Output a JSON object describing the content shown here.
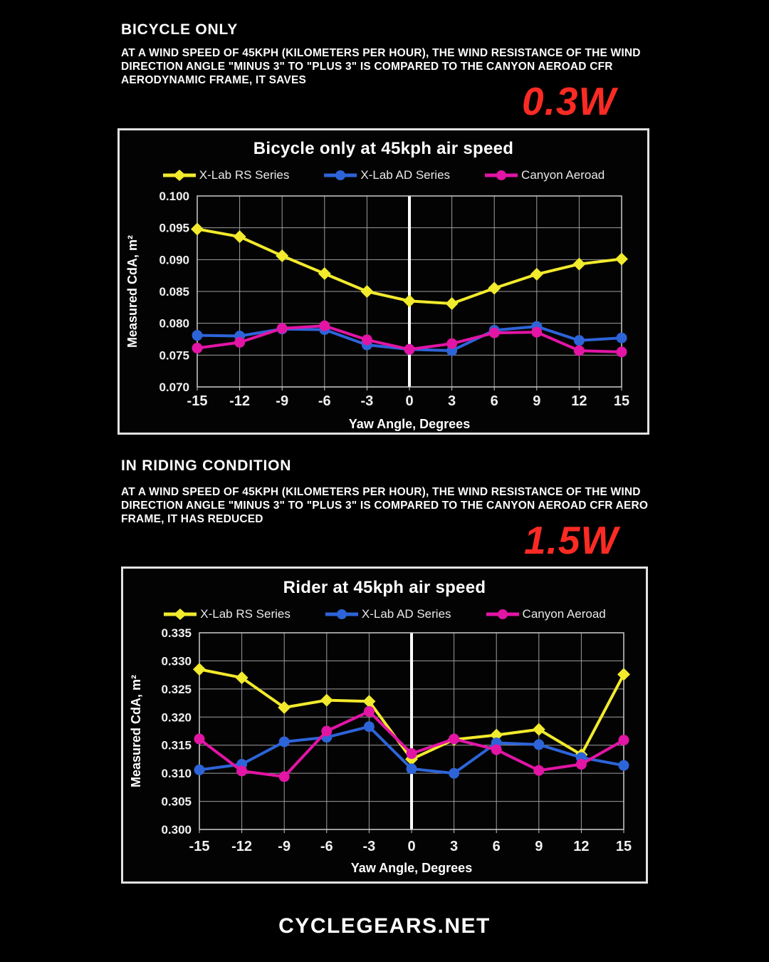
{
  "page": {
    "background": "#000000",
    "accent_red": "#fb2b24"
  },
  "section1": {
    "heading": "BICYCLE ONLY",
    "body": "AT A WIND SPEED OF 45KPH (KILOMETERS PER HOUR), THE WIND RESISTANCE OF THE WIND DIRECTION ANGLE \"MINUS 3\" TO \"PLUS 3\" IS COMPARED TO THE CANYON AEROAD CFR AERODYNAMIC FRAME, IT SAVES",
    "highlight": "0.3W"
  },
  "section2": {
    "heading": "IN RIDING CONDITION",
    "body": "AT A WIND SPEED OF 45KPH (KILOMETERS PER HOUR), THE WIND RESISTANCE OF THE WIND DIRECTION ANGLE \"MINUS 3\" TO \"PLUS 3\" IS COMPARED TO THE CANYON AEROAD CFR AERO FRAME, IT HAS REDUCED",
    "highlight": "1.5W"
  },
  "footer": {
    "text": "CYCLEGEARS.NET"
  },
  "chart_data": [
    {
      "type": "line",
      "title": "Bicycle only at 45kph air speed",
      "xlabel": "Yaw Angle, Degrees",
      "ylabel": "Measured CdA, m²",
      "x": [
        -15,
        -12,
        -9,
        -6,
        -3,
        0,
        3,
        6,
        9,
        12,
        15
      ],
      "ylim": [
        0.07,
        0.1
      ],
      "ytick_step": 0.005,
      "ytick_decimals": 3,
      "grid": true,
      "legend_position": "top",
      "zero_line_color": "#ffffff",
      "series": [
        {
          "name": "X-Lab RS Series",
          "color": "#f2ea2d",
          "marker": "diamond",
          "values": [
            0.0948,
            0.0936,
            0.0906,
            0.0878,
            0.085,
            0.0835,
            0.0831,
            0.0855,
            0.0877,
            0.0893,
            0.0901
          ]
        },
        {
          "name": "X-Lab AD Series",
          "color": "#2d64d8",
          "marker": "circle",
          "values": [
            0.0781,
            0.078,
            0.0791,
            0.079,
            0.0766,
            0.0759,
            0.0757,
            0.0789,
            0.0795,
            0.0773,
            0.0777
          ]
        },
        {
          "name": "Canyon Aeroad",
          "color": "#e215a5",
          "marker": "circle",
          "values": [
            0.0761,
            0.077,
            0.0792,
            0.0796,
            0.0774,
            0.0759,
            0.0768,
            0.0785,
            0.0786,
            0.0757,
            0.0755
          ]
        }
      ]
    },
    {
      "type": "line",
      "title": "Rider at 45kph air speed",
      "xlabel": "Yaw Angle, Degrees",
      "ylabel": "Measured CdA, m²",
      "x": [
        -15,
        -12,
        -9,
        -6,
        -3,
        0,
        3,
        6,
        9,
        12,
        15
      ],
      "ylim": [
        0.3,
        0.335
      ],
      "ytick_step": 0.005,
      "ytick_decimals": 3,
      "grid": true,
      "legend_position": "top",
      "zero_line_color": "#ffffff",
      "series": [
        {
          "name": "X-Lab RS Series",
          "color": "#f2ea2d",
          "marker": "diamond",
          "values": [
            0.3285,
            0.327,
            0.3217,
            0.323,
            0.3228,
            0.3125,
            0.316,
            0.3168,
            0.3178,
            0.3133,
            0.3276
          ]
        },
        {
          "name": "X-Lab AD Series",
          "color": "#2d64d8",
          "marker": "circle",
          "values": [
            0.3106,
            0.3116,
            0.3156,
            0.3164,
            0.3183,
            0.3108,
            0.31,
            0.3154,
            0.3151,
            0.3128,
            0.3114
          ]
        },
        {
          "name": "Canyon Aeroad",
          "color": "#e215a5",
          "marker": "circle",
          "values": [
            0.3161,
            0.3104,
            0.3094,
            0.3175,
            0.321,
            0.3135,
            0.3161,
            0.3142,
            0.3105,
            0.3116,
            0.3159
          ]
        }
      ]
    }
  ]
}
